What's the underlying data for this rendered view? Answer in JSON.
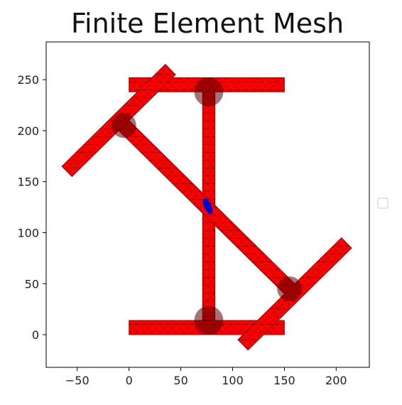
{
  "chart_data": {
    "type": "mesh",
    "title": "Finite Element Mesh",
    "xlabel": "",
    "ylabel": "",
    "xlim": [
      -80,
      232
    ],
    "ylim": [
      -32,
      287
    ],
    "xticks": [
      -50,
      0,
      50,
      100,
      150,
      200
    ],
    "yticks": [
      0,
      50,
      100,
      150,
      200,
      250
    ],
    "tick_labels": {
      "x": [
        "−50",
        "0",
        "50",
        "100",
        "150",
        "200"
      ],
      "y": [
        "0",
        "50",
        "100",
        "150",
        "200",
        "250"
      ]
    },
    "grid": false,
    "legend": {
      "placement": "outside-right",
      "entries": []
    },
    "colors": {
      "element_fill": "#ff0000",
      "mesh_line": "#000000",
      "highlight": "#0000cc"
    },
    "regions": [
      {
        "name": "top-flange",
        "kind": "rect",
        "xmin": 0,
        "xmax": 150,
        "ymin": 238,
        "ymax": 252
      },
      {
        "name": "bottom-flange",
        "kind": "rect",
        "xmin": 0,
        "xmax": 150,
        "ymin": 0,
        "ymax": 14
      },
      {
        "name": "vertical-web",
        "kind": "rect",
        "xmin": 71,
        "xmax": 83,
        "ymin": 14,
        "ymax": 238
      },
      {
        "name": "inclined-bar-upper",
        "kind": "segment",
        "x1": -60,
        "y1": 160,
        "x2": 40,
        "y2": 260,
        "width": 14
      },
      {
        "name": "inclined-bar-lower",
        "kind": "segment",
        "x1": 110,
        "y1": -10,
        "x2": 210,
        "y2": 90,
        "width": 14
      },
      {
        "name": "diagonal-web",
        "kind": "segment",
        "x1": -5,
        "y1": 205,
        "x2": 155,
        "y2": 45,
        "width": 14
      }
    ],
    "fillets": [
      {
        "x": 77,
        "y": 238,
        "r": 14
      },
      {
        "x": 77,
        "y": 14,
        "r": 14
      },
      {
        "x": -5,
        "y": 205,
        "r": 12
      },
      {
        "x": 155,
        "y": 45,
        "r": 12
      }
    ],
    "highlight_point": {
      "x": 76,
      "y": 126
    }
  }
}
